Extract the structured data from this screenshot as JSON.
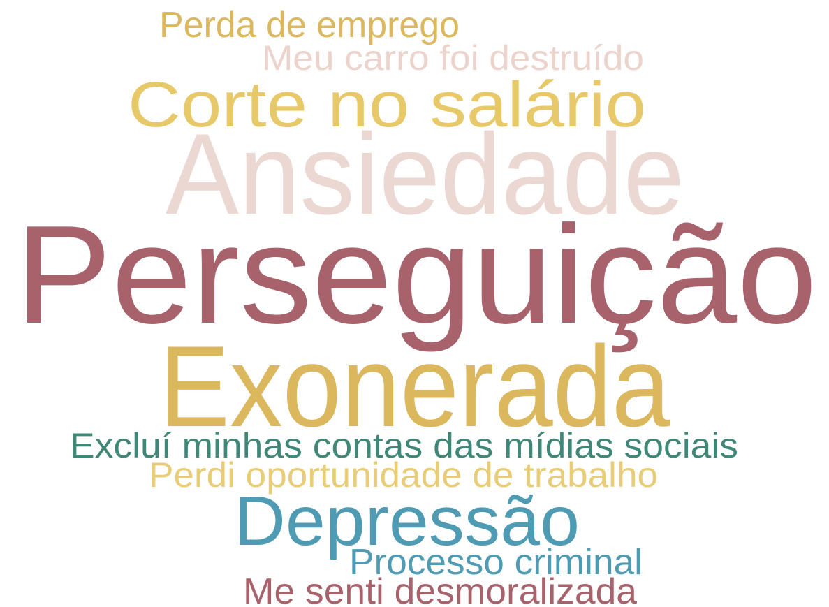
{
  "words": [
    {
      "text": "Perda de emprego"
    },
    {
      "text": "Meu carro foi destruído"
    },
    {
      "text": "Corte no salário"
    },
    {
      "text": "Ansiedade"
    },
    {
      "text": "Perseguição"
    },
    {
      "text": "Exonerada"
    },
    {
      "text": "Excluí minhas contas das mídias sociais"
    },
    {
      "text": "Perdi oportunidade de trabalho"
    },
    {
      "text": "Depressão"
    },
    {
      "text": "Processo criminal"
    },
    {
      "text": "Me senti desmoralizada"
    }
  ]
}
